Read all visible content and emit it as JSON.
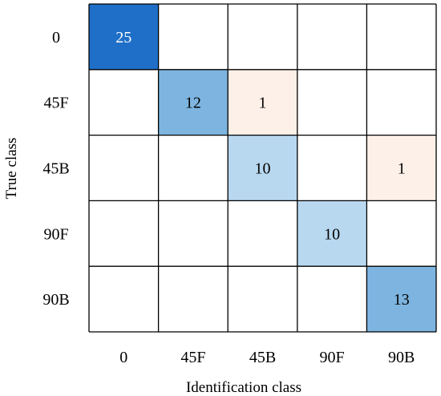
{
  "chart_data": {
    "type": "heatmap",
    "title": "",
    "xlabel": "Identification class",
    "ylabel": "True class",
    "x_categories": [
      "0",
      "45F",
      "45B",
      "90F",
      "90B"
    ],
    "y_categories": [
      "0",
      "45F",
      "45B",
      "90F",
      "90B"
    ],
    "values": [
      [
        25,
        null,
        null,
        null,
        null
      ],
      [
        null,
        12,
        1,
        null,
        null
      ],
      [
        null,
        null,
        10,
        null,
        1
      ],
      [
        null,
        null,
        null,
        10,
        null
      ],
      [
        null,
        null,
        null,
        null,
        13
      ]
    ],
    "colors": {
      "high": "#1f6fc8",
      "mid": "#7db5e0",
      "low": "#b8d8f0",
      "off_diagonal": "#fdf0e8",
      "grid": "#000000",
      "text_dark": "#000000",
      "text_light": "#ffffff"
    }
  }
}
